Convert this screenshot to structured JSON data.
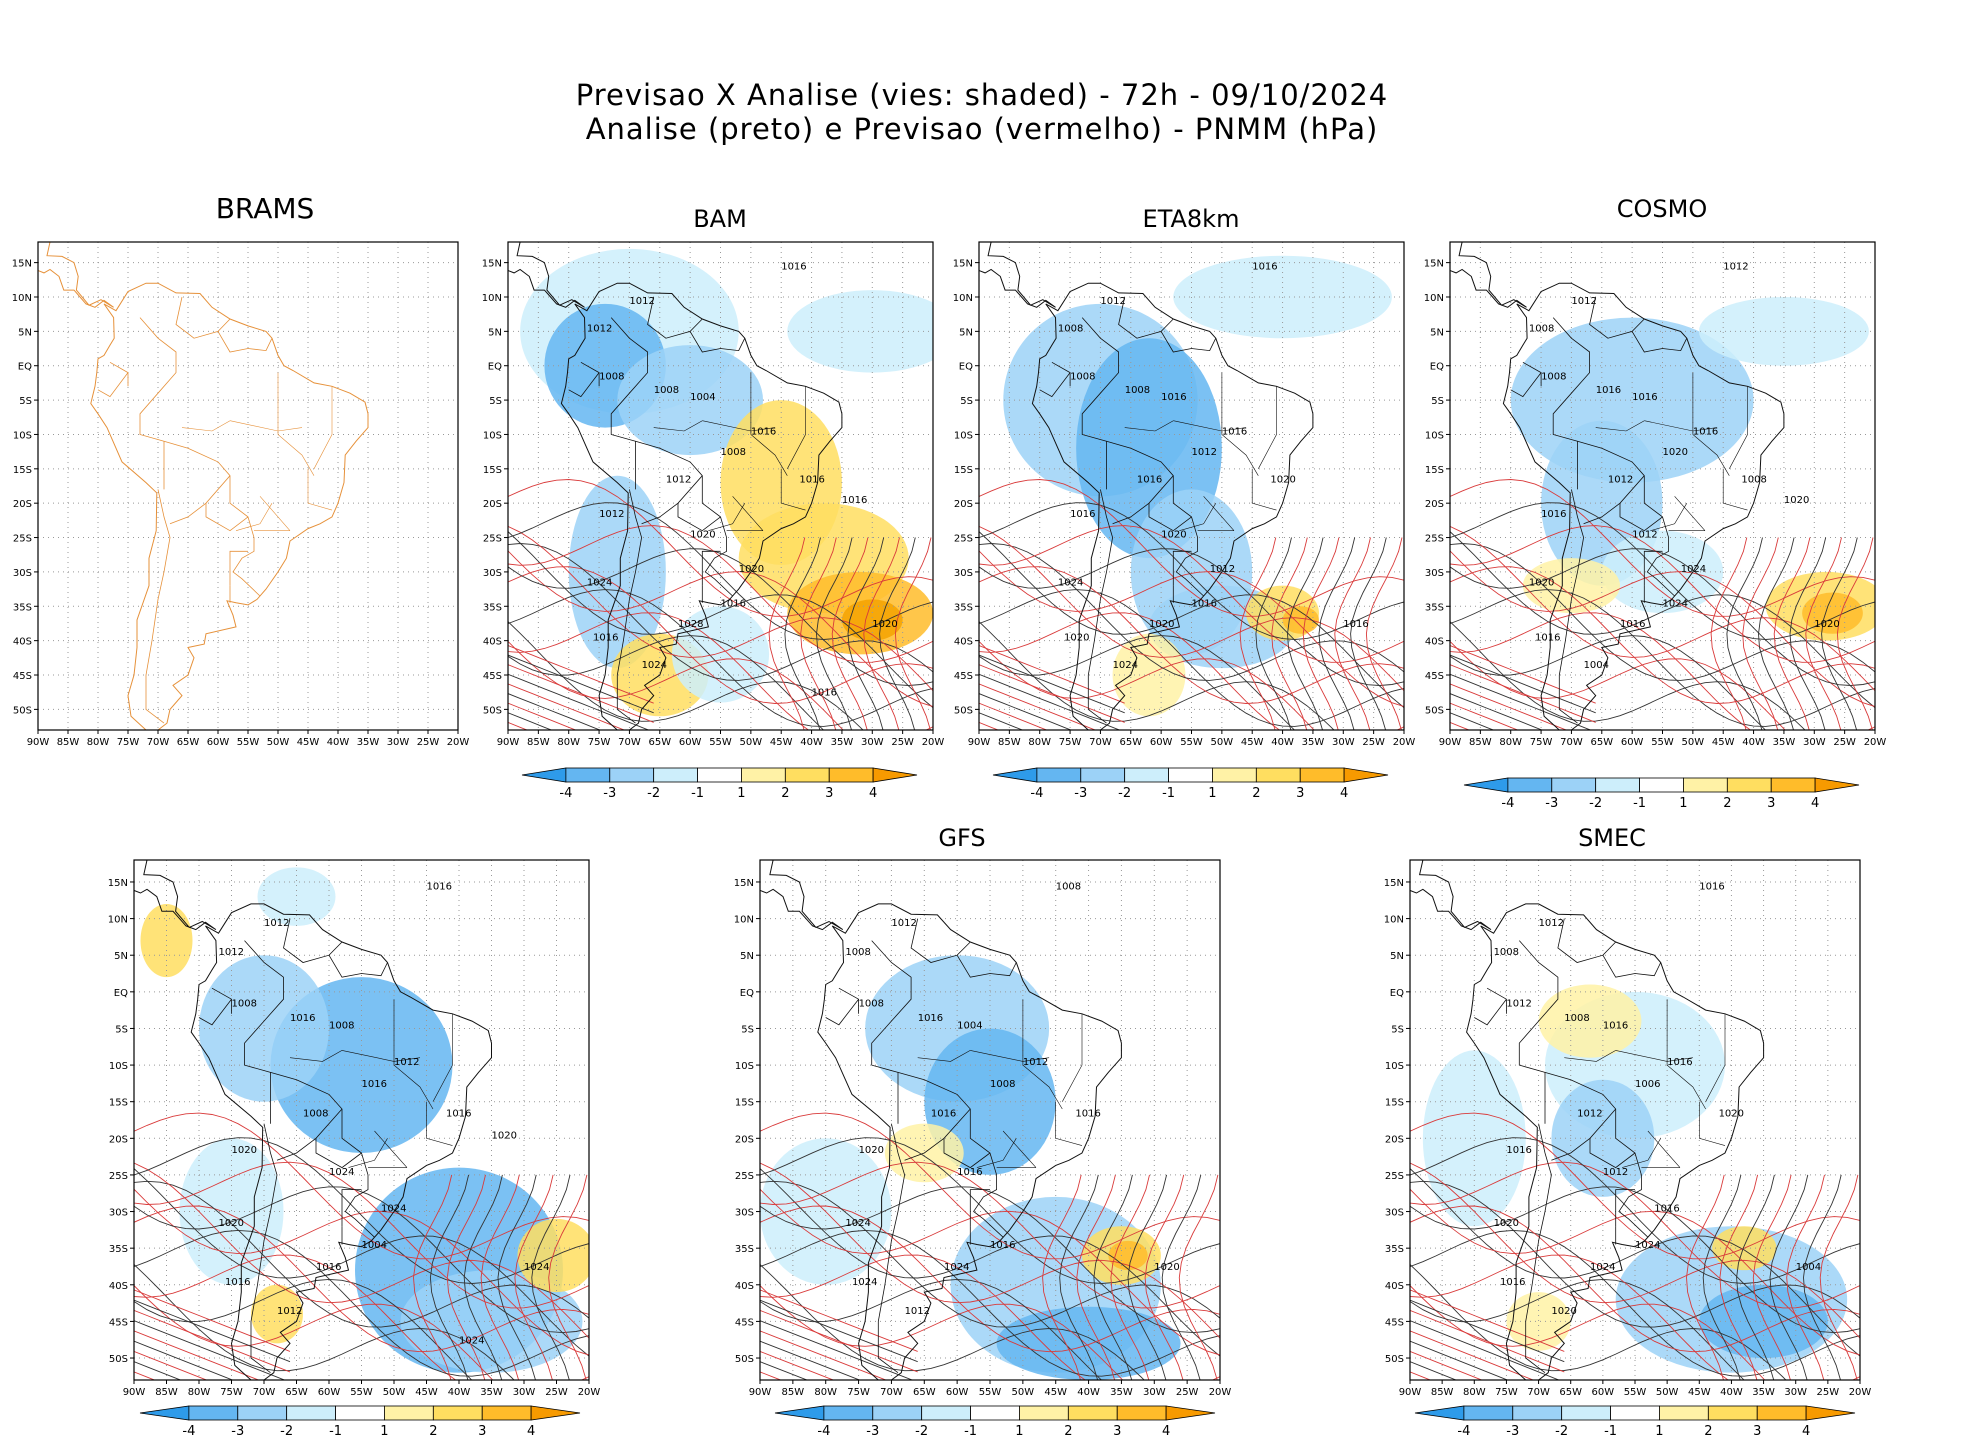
{
  "header": {
    "line1": "Previsao X Analise (vies: shaded) - 72h - 09/10/2024",
    "line2": "Analise (preto) e Previsao (vermelho) - PNMM (hPa)"
  },
  "panels": [
    {
      "id": "brams",
      "title": "BRAMS",
      "has_colorbar": false,
      "analysis_only": true
    },
    {
      "id": "bam",
      "title": "BAM",
      "has_colorbar": true,
      "labels": [
        "1016",
        "1012",
        "1012",
        "1008",
        "1008",
        "1004",
        "1016",
        "1008",
        "1012",
        "1016",
        "1012",
        "1020",
        "1024",
        "1016",
        "1020",
        "1016",
        "1024",
        "1028",
        "1020",
        "1016",
        "1016"
      ]
    },
    {
      "id": "eta8km",
      "title": "ETA8km",
      "has_colorbar": true,
      "labels": [
        "1016",
        "1012",
        "1008",
        "1008",
        "1008",
        "1016",
        "1016",
        "1012",
        "1016",
        "1020",
        "1016",
        "1020",
        "1024",
        "1016",
        "1016",
        "1020",
        "1024",
        "1020",
        "1012"
      ]
    },
    {
      "id": "cosmo",
      "title": "COSMO",
      "has_colorbar": true,
      "labels": [
        "1012",
        "1012",
        "1008",
        "1008",
        "1016",
        "1016",
        "1016",
        "1020",
        "1012",
        "1008",
        "1016",
        "1012",
        "1020",
        "1024",
        "1020",
        "1016",
        "1004",
        "1016",
        "1024",
        "1020"
      ]
    },
    {
      "id": "unnamed",
      "title": "",
      "has_colorbar": true,
      "labels": [
        "1016",
        "1012",
        "1012",
        "1008",
        "1016",
        "1008",
        "1012",
        "1016",
        "1008",
        "1016",
        "1020",
        "1024",
        "1020",
        "1004",
        "1024",
        "1016",
        "1012",
        "1016",
        "1024",
        "1020",
        "1024"
      ]
    },
    {
      "id": "gfs",
      "title": "GFS",
      "has_colorbar": true,
      "labels": [
        "1008",
        "1012",
        "1008",
        "1008",
        "1016",
        "1004",
        "1012",
        "1008",
        "1016",
        "1016",
        "1020",
        "1016",
        "1024",
        "1016",
        "1020",
        "1024",
        "1012",
        "1024"
      ]
    },
    {
      "id": "smec",
      "title": "SMEC",
      "has_colorbar": true,
      "labels": [
        "1016",
        "1012",
        "1008",
        "1012",
        "1008",
        "1016",
        "1016",
        "1006",
        "1012",
        "1020",
        "1016",
        "1012",
        "1020",
        "1024",
        "1004",
        "1016",
        "1020",
        "1024",
        "1016"
      ]
    }
  ],
  "axes": {
    "lat_labels": [
      "15N",
      "10N",
      "5N",
      "EQ",
      "5S",
      "10S",
      "15S",
      "20S",
      "25S",
      "30S",
      "35S",
      "40S",
      "45S",
      "50S"
    ],
    "lon_labels": [
      "90W",
      "85W",
      "80W",
      "75W",
      "70W",
      "65W",
      "60W",
      "55W",
      "50W",
      "45W",
      "40W",
      "35W",
      "30W",
      "25W",
      "20W"
    ],
    "lat_values": [
      15,
      10,
      5,
      0,
      -5,
      -10,
      -15,
      -20,
      -25,
      -30,
      -35,
      -40,
      -45,
      -50
    ],
    "lon_values": [
      -90,
      -85,
      -80,
      -75,
      -70,
      -65,
      -60,
      -55,
      -50,
      -45,
      -40,
      -35,
      -30,
      -25,
      -20
    ],
    "lat_range": [
      -53,
      18
    ],
    "lon_range": [
      -90,
      -20
    ]
  },
  "colorbar": {
    "labels": [
      "-4",
      "-3",
      "-2",
      "-1",
      "1",
      "2",
      "3",
      "4"
    ],
    "colors": [
      "#2e9bea",
      "#64b6f1",
      "#9cd2f7",
      "#cdeefb",
      "#ffffff",
      "#fff2a6",
      "#ffde60",
      "#ffbc2a",
      "#f79a00"
    ]
  }
}
